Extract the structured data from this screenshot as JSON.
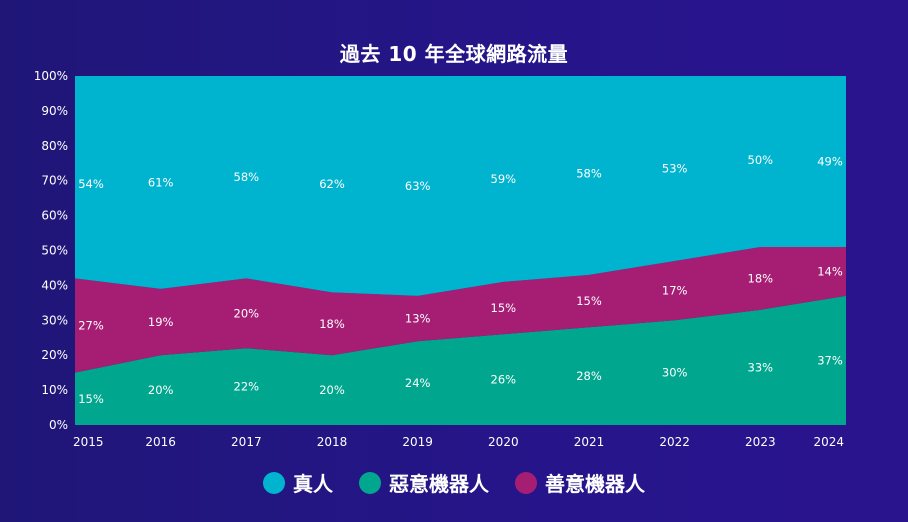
{
  "chart_data": {
    "type": "area",
    "stacked": true,
    "title": "過去 10 年全球網路流量",
    "xlabel": "",
    "ylabel": "",
    "x": [
      "2015",
      "2016",
      "2017",
      "2018",
      "2019",
      "2020",
      "2021",
      "2022",
      "2023",
      "2024"
    ],
    "ylim": [
      0,
      100
    ],
    "yticks": [
      "0%",
      "10%",
      "20%",
      "30%",
      "40%",
      "50%",
      "60%",
      "70%",
      "80%",
      "90%",
      "100%"
    ],
    "grid": false,
    "legend_position": "bottom",
    "series": [
      {
        "name": "惡意機器人",
        "color": "#00a78e",
        "values": [
          15,
          20,
          22,
          20,
          24,
          26,
          28,
          30,
          33,
          37
        ],
        "labels": [
          "15%",
          "20%",
          "22%",
          "20%",
          "24%",
          "26%",
          "28%",
          "30%",
          "33%",
          "37%"
        ]
      },
      {
        "name": "善意機器人",
        "color": "#a61e74",
        "values": [
          27,
          19,
          20,
          18,
          13,
          15,
          15,
          17,
          18,
          14
        ],
        "labels": [
          "27%",
          "19%",
          "20%",
          "18%",
          "13%",
          "15%",
          "15%",
          "17%",
          "18%",
          "14%"
        ]
      },
      {
        "name": "真人",
        "color": "#00b4d0",
        "values": [
          54,
          61,
          58,
          62,
          63,
          59,
          58,
          53,
          50,
          49
        ],
        "labels": [
          "54%",
          "61%",
          "58%",
          "62%",
          "63%",
          "59%",
          "58%",
          "53%",
          "50%",
          "49%"
        ]
      }
    ],
    "legend": [
      {
        "name": "真人",
        "color": "#00b4d0"
      },
      {
        "name": "惡意機器人",
        "color": "#00a78e"
      },
      {
        "name": "善意機器人",
        "color": "#a61e74"
      }
    ]
  }
}
